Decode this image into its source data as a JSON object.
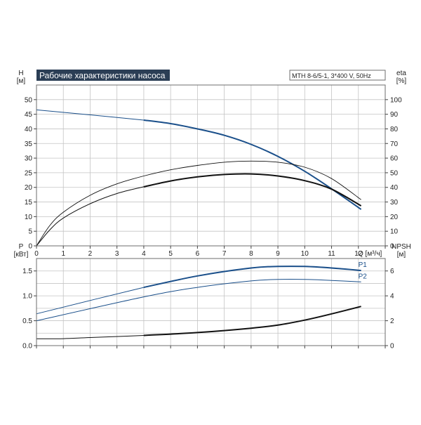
{
  "chart_data": [
    {
      "type": "line",
      "title": "Рабочие характеристики насоса",
      "model_label": "MTH 8-6/5-1, 3*400 V, 50Hz",
      "x_axis": {
        "label": "Q [м³/ч]",
        "ticks": [
          "0",
          "1",
          "2",
          "3",
          "4",
          "5",
          "6",
          "7",
          "8",
          "9",
          "10",
          "11",
          "12"
        ],
        "range": [
          0,
          13
        ]
      },
      "y_left": {
        "label_top": "H",
        "label_unit": "[м]",
        "ticks": [
          "0",
          "5",
          "10",
          "15",
          "20",
          "25",
          "30",
          "35",
          "40",
          "45",
          "50"
        ],
        "range": [
          0,
          55
        ]
      },
      "y_right": {
        "label_top": "eta",
        "label_unit": "[%]",
        "ticks": [
          "0",
          "10",
          "20",
          "30",
          "40",
          "50",
          "60",
          "70",
          "80",
          "90",
          "100"
        ],
        "range": [
          0,
          110
        ]
      },
      "grid": true,
      "series": [
        {
          "axis": "left",
          "color": "#1a4f8a",
          "x": [
            0,
            2,
            4,
            5,
            6,
            7,
            8,
            9,
            10,
            11,
            12.1
          ],
          "y": [
            46.5,
            44.8,
            43,
            41.8,
            40,
            37.8,
            34.7,
            30.6,
            25.5,
            19.5,
            12.5
          ]
        },
        {
          "axis": "left",
          "color": "#111111",
          "x": [
            0,
            0.5,
            1,
            2,
            3,
            4,
            5,
            6,
            7,
            8,
            9,
            10,
            11,
            12.1
          ],
          "y": [
            0,
            5.5,
            9.5,
            14.4,
            17.9,
            20.2,
            22.2,
            23.6,
            24.4,
            24.6,
            23.9,
            22.3,
            19.4,
            13.7
          ]
        },
        {
          "axis": "left",
          "color": "#111111",
          "x": [
            0,
            0.5,
            1,
            2,
            3,
            4,
            5,
            6,
            7,
            8,
            9,
            10,
            11,
            12.1
          ],
          "y": [
            0,
            7,
            11.5,
            17.3,
            21.2,
            23.9,
            26,
            27.5,
            28.6,
            29,
            28.6,
            26.9,
            23,
            15.8
          ]
        }
      ]
    },
    {
      "type": "line",
      "x_axis": {
        "ticks": [],
        "range": [
          0,
          13
        ]
      },
      "y_left": {
        "label_top": "P",
        "label_unit": "[кВт]",
        "ticks": [
          "0.0",
          "0.5",
          "1.0",
          "1.5"
        ],
        "range": [
          0,
          1.75
        ]
      },
      "y_right": {
        "label_top": "NPSH",
        "label_unit": "[м]",
        "ticks": [
          "0",
          "2",
          "4",
          "6"
        ],
        "range": [
          0,
          7
        ]
      },
      "grid": true,
      "series": [
        {
          "name": "P1",
          "axis": "left",
          "color": "#1a4f8a",
          "x": [
            0,
            4,
            6,
            8,
            9,
            10,
            11,
            12.1
          ],
          "y": [
            0.64,
            1.17,
            1.4,
            1.56,
            1.59,
            1.59,
            1.56,
            1.51
          ]
        },
        {
          "name": "P2",
          "axis": "left",
          "color": "#1a4f8a",
          "x": [
            0,
            4,
            6,
            8,
            9,
            10,
            11,
            12.1
          ],
          "y": [
            0.5,
            0.98,
            1.17,
            1.3,
            1.33,
            1.33,
            1.31,
            1.28
          ]
        },
        {
          "axis": "right",
          "color": "#111111",
          "x": [
            0,
            1,
            2,
            4,
            6,
            8,
            9,
            10,
            11,
            12.1
          ],
          "y": [
            0.55,
            0.56,
            0.65,
            0.82,
            1.05,
            1.4,
            1.65,
            2.05,
            2.55,
            3.15
          ]
        }
      ]
    }
  ]
}
